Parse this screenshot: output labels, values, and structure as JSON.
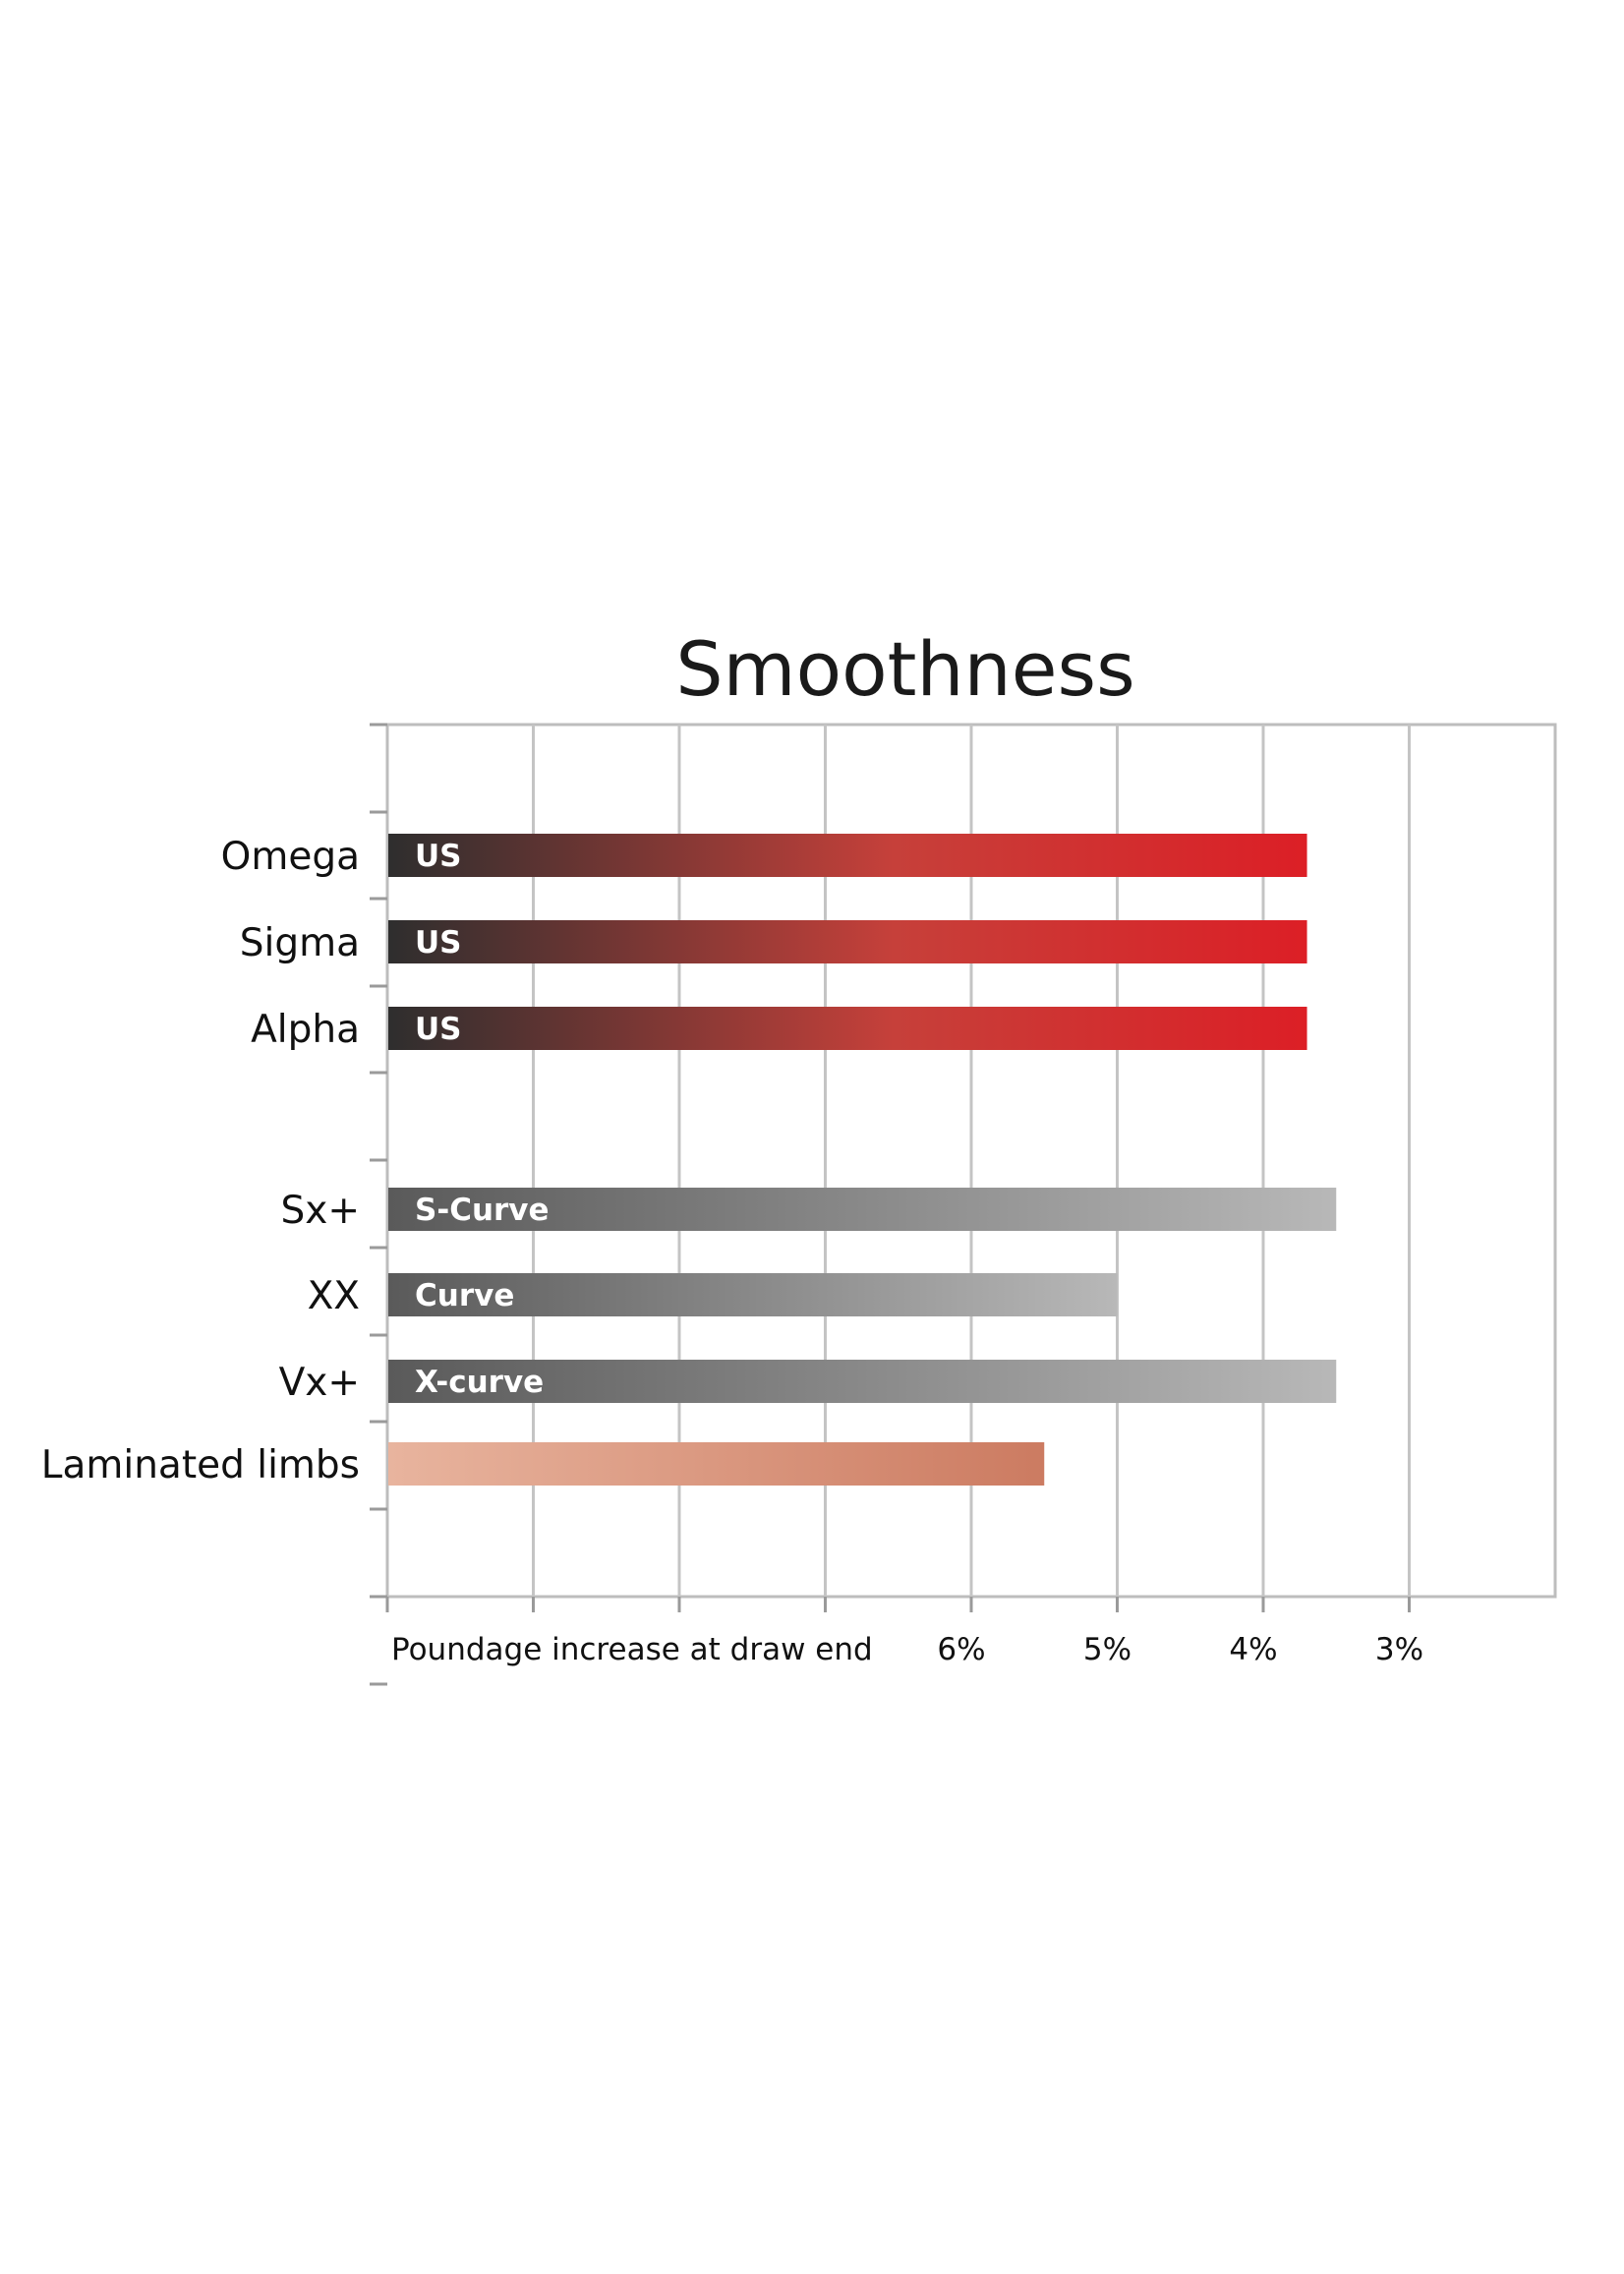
{
  "chart_data": {
    "type": "bar",
    "orientation": "horizontal",
    "title": "Smoothness",
    "xlabel": "Poundage increase at draw end",
    "ylabel": "",
    "x_axis": "reversed",
    "xlim": [
      10,
      2
    ],
    "x_ticks": [
      {
        "value": 6,
        "label": "6%"
      },
      {
        "value": 5,
        "label": "5%"
      },
      {
        "value": 4,
        "label": "4%"
      },
      {
        "value": 3,
        "label": "3%"
      }
    ],
    "grid": true,
    "legend": "none",
    "categories": [
      "Omega",
      "Sigma",
      "Alpha",
      "Sx+",
      "XX",
      "Vx+",
      "Laminated limbs"
    ],
    "values": [
      3.7,
      3.7,
      3.7,
      3.5,
      5.0,
      3.5,
      5.5
    ],
    "bar_labels": [
      "US",
      "US",
      "US",
      "S-Curve",
      "Curve",
      "X-curve",
      ""
    ],
    "groups": [
      {
        "categories": [
          "Omega",
          "Sigma",
          "Alpha"
        ],
        "color_start": "#2e2e2e",
        "color_end": "#dc1f26"
      },
      {
        "categories": [
          "Sx+",
          "XX",
          "Vx+"
        ],
        "color_start": "#5a5a5a",
        "color_end": "#b8b8b8"
      },
      {
        "categories": [
          "Laminated limbs"
        ],
        "color_start": "#e8b49e",
        "color_end": "#cc7b61"
      }
    ]
  }
}
